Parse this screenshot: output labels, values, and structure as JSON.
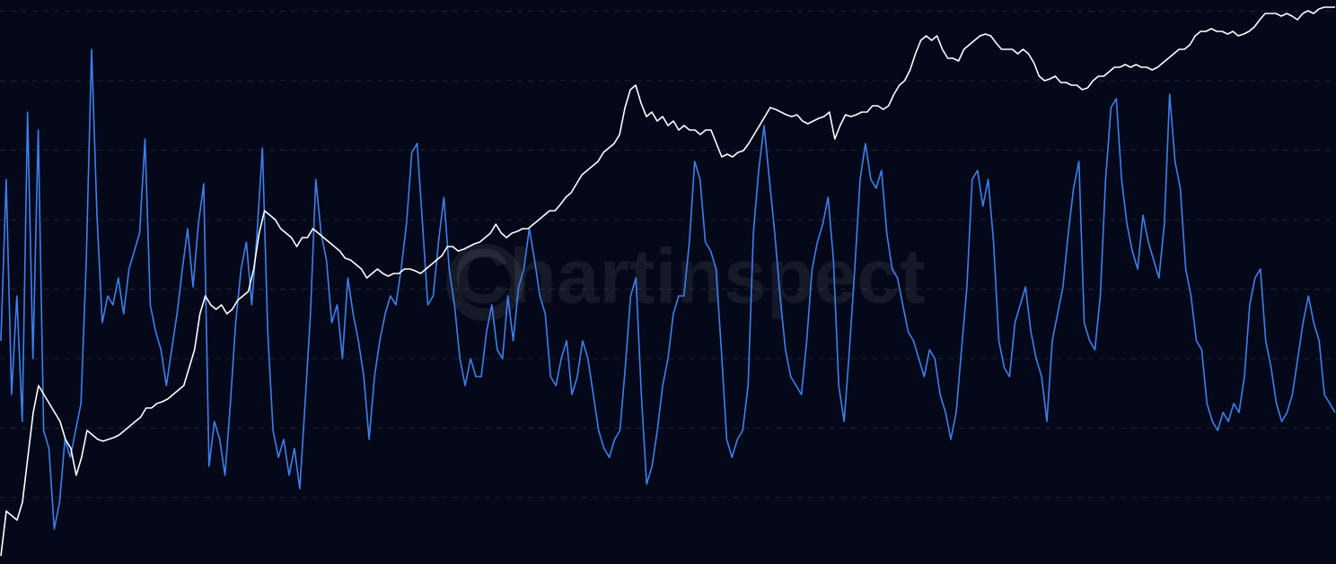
{
  "chart_data": {
    "type": "line",
    "watermark": "Chartinspect",
    "ylim": [
      0,
      629
    ],
    "yticks": [
      74,
      151.5,
      229,
      306.5,
      384,
      461.5,
      539,
      616.5
    ],
    "grid": true,
    "series": [
      {
        "color": "#3d80ee",
        "values": [
          249,
          429,
          189,
          299,
          159,
          504,
          229,
          484,
          149,
          129,
          39,
          69,
          139,
          119,
          149,
          179,
          339,
          574,
          389,
          269,
          299,
          289,
          319,
          279,
          329,
          349,
          369,
          474,
          289,
          259,
          239,
          199,
          239,
          279,
          329,
          374,
          309,
          379,
          424,
          109,
          159,
          139,
          99,
          179,
          269,
          329,
          359,
          289,
          369,
          464,
          259,
          149,
          119,
          139,
          99,
          129,
          84,
          179,
          279,
          429,
          369,
          339,
          269,
          289,
          229,
          319,
          279,
          249,
          209,
          139,
          209,
          249,
          279,
          299,
          289,
          329,
          379,
          459,
          469,
          379,
          289,
          299,
          359,
          409,
          329,
          289,
          229,
          199,
          229,
          209,
          209,
          259,
          289,
          239,
          229,
          299,
          249,
          309,
          329,
          374,
          339,
          299,
          279,
          209,
          199,
          229,
          249,
          189,
          209,
          249,
          229,
          189,
          149,
          129,
          119,
          139,
          149,
          219,
          299,
          319,
          189,
          89,
          109,
          149,
          199,
          229,
          279,
          299,
          299,
          359,
          449,
          429,
          359,
          349,
          329,
          239,
          139,
          119,
          139,
          149,
          199,
          369,
          439,
          489,
          429,
          369,
          299,
          239,
          209,
          199,
          189,
          249,
          329,
          359,
          379,
          409,
          339,
          199,
          159,
          239,
          329,
          429,
          469,
          429,
          419,
          439,
          369,
          329,
          319,
          289,
          259,
          249,
          229,
          209,
          239,
          229,
          189,
          169,
          139,
          169,
          239,
          309,
          429,
          439,
          399,
          429,
          359,
          249,
          219,
          209,
          269,
          289,
          309,
          259,
          229,
          209,
          159,
          249,
          279,
          309,
          369,
          419,
          449,
          269,
          249,
          239,
          299,
          429,
          509,
          519,
          429,
          379,
          349,
          329,
          389,
          359,
          339,
          319,
          379,
          524,
          449,
          419,
          329,
          299,
          249,
          239,
          179,
          159,
          149,
          169,
          159,
          179,
          169,
          209,
          289,
          319,
          329,
          249,
          219,
          179,
          159,
          169,
          189,
          229,
          269,
          299,
          269,
          249,
          189,
          179,
          169
        ]
      },
      {
        "color": "#ffffff",
        "values": [
          9,
          59,
          54,
          49,
          69,
          119,
          169,
          199,
          189,
          179,
          169,
          159,
          139,
          129,
          99,
          119,
          149,
          144,
          139,
          137,
          139,
          141,
          144,
          149,
          154,
          159,
          164,
          174,
          174,
          179,
          181,
          184,
          189,
          194,
          199,
          219,
          239,
          279,
          299,
          289,
          284,
          289,
          279,
          284,
          294,
          299,
          304,
          329,
          369,
          394,
          389,
          384,
          374,
          369,
          364,
          354,
          364,
          364,
          374,
          369,
          364,
          359,
          354,
          349,
          341,
          339,
          334,
          329,
          319,
          324,
          329,
          324,
          321,
          324,
          324,
          329,
          329,
          327,
          324,
          329,
          334,
          339,
          344,
          354,
          354,
          349,
          351,
          354,
          357,
          359,
          364,
          369,
          379,
          369,
          364,
          369,
          371,
          374,
          374,
          379,
          384,
          389,
          394,
          394,
          401,
          409,
          414,
          424,
          434,
          439,
          444,
          449,
          459,
          464,
          469,
          479,
          509,
          529,
          534,
          514,
          499,
          504,
          494,
          499,
          489,
          494,
          484,
          489,
          484,
          484,
          479,
          484,
          484,
          469,
          454,
          457,
          454,
          459,
          461,
          469,
          479,
          489,
          499,
          509,
          507,
          504,
          501,
          499,
          501,
          494,
          491,
          494,
          497,
          499,
          504,
          474,
          489,
          501,
          499,
          501,
          504,
          504,
          511,
          511,
          507,
          511,
          524,
          534,
          539,
          551,
          569,
          584,
          589,
          584,
          589,
          574,
          564,
          564,
          561,
          574,
          579,
          584,
          589,
          591,
          589,
          581,
          574,
          574,
          574,
          569,
          574,
          569,
          559,
          544,
          539,
          541,
          544,
          537,
          537,
          534,
          534,
          529,
          531,
          539,
          544,
          544,
          549,
          554,
          554,
          557,
          554,
          557,
          554,
          554,
          551,
          554,
          559,
          564,
          569,
          574,
          574,
          579,
          589,
          594,
          594,
          597,
          594,
          594,
          591,
          594,
          589,
          591,
          594,
          599,
          607,
          614,
          614,
          614,
          611,
          614,
          611,
          607,
          614,
          617,
          614,
          619,
          621,
          621,
          621
        ]
      }
    ]
  }
}
